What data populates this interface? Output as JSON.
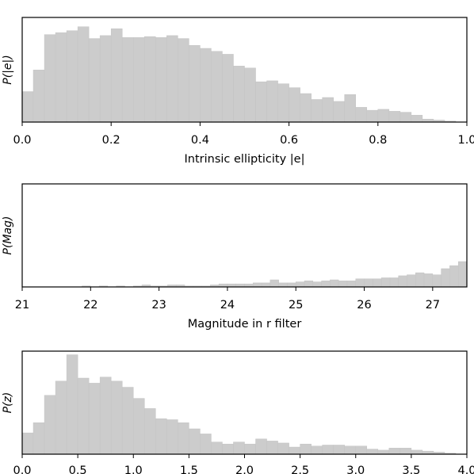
{
  "chart_data": [
    {
      "type": "histogram",
      "xlabel": "Intrinsic ellipticity |e|",
      "ylabel": "P(|e|)",
      "xlim": [
        0.0,
        1.0
      ],
      "grid": false,
      "xticks": [
        "0.0",
        "0.2",
        "0.4",
        "0.6",
        "0.8",
        "1.0"
      ],
      "bin_edges": [
        0.0,
        0.025,
        0.05,
        0.075,
        0.1,
        0.125,
        0.15,
        0.175,
        0.2,
        0.225,
        0.25,
        0.275,
        0.3,
        0.325,
        0.35,
        0.375,
        0.4,
        0.425,
        0.45,
        0.475,
        0.5,
        0.525,
        0.55,
        0.575,
        0.6,
        0.625,
        0.65,
        0.675,
        0.7,
        0.725,
        0.75,
        0.775,
        0.8,
        0.825,
        0.85,
        0.875,
        0.9,
        0.925,
        0.95,
        0.975,
        1.0
      ],
      "values": [
        0.31,
        0.53,
        0.89,
        0.91,
        0.93,
        0.97,
        0.85,
        0.88,
        0.95,
        0.86,
        0.86,
        0.87,
        0.86,
        0.88,
        0.85,
        0.78,
        0.75,
        0.72,
        0.69,
        0.57,
        0.55,
        0.41,
        0.42,
        0.39,
        0.35,
        0.29,
        0.23,
        0.25,
        0.21,
        0.28,
        0.15,
        0.12,
        0.13,
        0.11,
        0.1,
        0.07,
        0.03,
        0.02,
        0.01,
        0.0
      ]
    },
    {
      "type": "histogram",
      "xlabel": "Magnitude in r filter",
      "ylabel": "P(Mag)",
      "xlim": [
        21,
        27.5
      ],
      "grid": false,
      "xticks": [
        "21",
        "22",
        "23",
        "24",
        "25",
        "26",
        "27"
      ],
      "bin_start": 21.0,
      "bin_width": 0.125,
      "values": [
        0.0,
        0.0,
        0.0,
        0.0,
        0.0,
        0.0,
        0.0,
        0.01,
        0.0,
        0.01,
        0.0,
        0.01,
        0.0,
        0.01,
        0.02,
        0.01,
        0.01,
        0.02,
        0.02,
        0.01,
        0.01,
        0.01,
        0.02,
        0.03,
        0.03,
        0.03,
        0.03,
        0.04,
        0.04,
        0.07,
        0.04,
        0.04,
        0.05,
        0.06,
        0.05,
        0.06,
        0.07,
        0.06,
        0.06,
        0.08,
        0.08,
        0.08,
        0.09,
        0.09,
        0.11,
        0.12,
        0.14,
        0.13,
        0.12,
        0.18,
        0.21,
        0.25,
        0.31,
        0.33,
        0.34,
        0.38,
        0.45,
        0.48,
        0.5,
        0.62,
        0.73,
        0.74,
        0.84,
        0.95
      ]
    },
    {
      "type": "histogram",
      "xlabel": "",
      "ylabel": "P(z)",
      "xlim": [
        0.0,
        4.0
      ],
      "grid": false,
      "xticks": [
        "0.0",
        "0.5",
        "1.0",
        "1.5",
        "2.0",
        "2.5",
        "3.0",
        "3.5",
        "4.0"
      ],
      "bin_start": 0.0,
      "bin_width": 0.1,
      "values": [
        0.21,
        0.31,
        0.58,
        0.72,
        0.98,
        0.75,
        0.7,
        0.76,
        0.72,
        0.66,
        0.55,
        0.45,
        0.35,
        0.34,
        0.31,
        0.25,
        0.2,
        0.12,
        0.1,
        0.12,
        0.1,
        0.15,
        0.13,
        0.11,
        0.07,
        0.1,
        0.08,
        0.09,
        0.09,
        0.08,
        0.08,
        0.05,
        0.04,
        0.06,
        0.06,
        0.04,
        0.03,
        0.02,
        0.01,
        0.0
      ]
    }
  ]
}
